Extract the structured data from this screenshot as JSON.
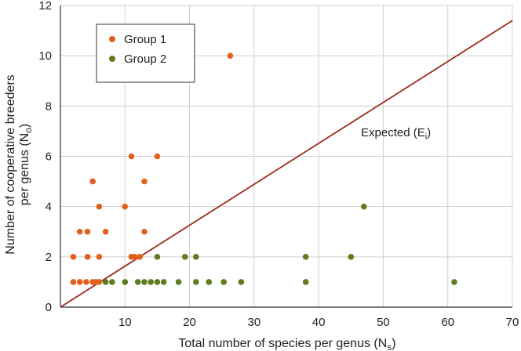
{
  "chart_data": {
    "type": "scatter",
    "xlabel": {
      "main": "Total number of species per genus (N",
      "sub": "s",
      "end": ")"
    },
    "ylabel": {
      "line1": "Number of cooperative breeders",
      "line2_main": "per genus (N",
      "line2_sub": "o",
      "line2_end": ")"
    },
    "xlim": [
      0,
      70
    ],
    "ylim": [
      0,
      12
    ],
    "xticks": [
      10,
      20,
      30,
      40,
      50,
      60,
      70
    ],
    "yticks": [
      0,
      2,
      4,
      6,
      8,
      10,
      12
    ],
    "grid": true,
    "legend_position": "top-left",
    "series": [
      {
        "name": "Group 1",
        "color": "#e2601e",
        "points": [
          [
            2,
            1
          ],
          [
            3,
            1
          ],
          [
            4,
            1
          ],
          [
            5,
            1
          ],
          [
            5.5,
            1
          ],
          [
            6,
            1
          ],
          [
            2,
            2
          ],
          [
            4.2,
            2
          ],
          [
            6,
            2
          ],
          [
            11,
            2
          ],
          [
            11.5,
            2
          ],
          [
            12.3,
            2
          ],
          [
            3,
            3
          ],
          [
            4.2,
            3
          ],
          [
            7,
            3
          ],
          [
            13,
            3
          ],
          [
            6,
            4
          ],
          [
            10,
            4
          ],
          [
            5,
            5
          ],
          [
            13,
            5
          ],
          [
            11,
            6
          ],
          [
            15,
            6
          ],
          [
            26.3,
            10
          ]
        ]
      },
      {
        "name": "Group 2",
        "color": "#5f7d1e",
        "points": [
          [
            7,
            1
          ],
          [
            8,
            1
          ],
          [
            10,
            1
          ],
          [
            12,
            1
          ],
          [
            13,
            1
          ],
          [
            14,
            1
          ],
          [
            15,
            1
          ],
          [
            16,
            1
          ],
          [
            18.3,
            1
          ],
          [
            21,
            1
          ],
          [
            23,
            1
          ],
          [
            25.3,
            1
          ],
          [
            28,
            1
          ],
          [
            38,
            1
          ],
          [
            61,
            1
          ],
          [
            15,
            2
          ],
          [
            19.3,
            2
          ],
          [
            21,
            2
          ],
          [
            38,
            2
          ],
          [
            45,
            2
          ],
          [
            47,
            4
          ]
        ]
      }
    ],
    "expected_line": {
      "label_main": "Expected (E",
      "label_sub": "i",
      "label_end": ")",
      "color": "#9b2c1f",
      "start": [
        0,
        0
      ],
      "end": [
        70,
        11.4
      ]
    }
  }
}
